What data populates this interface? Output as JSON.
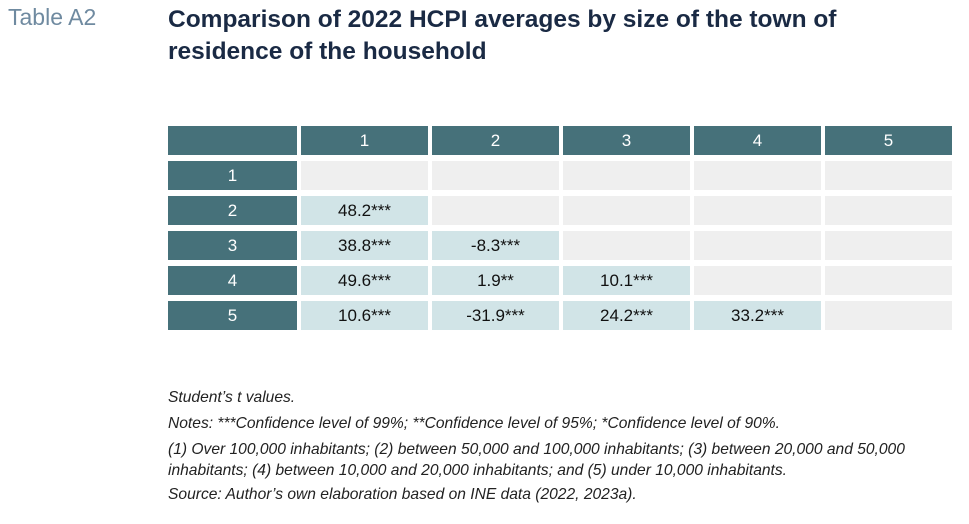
{
  "label": "Table A2",
  "title": "Comparison of 2022 HCPI averages by size of the town of residence of the household",
  "columns": [
    "",
    "1",
    "2",
    "3",
    "4",
    "5"
  ],
  "rows": [
    {
      "label": "1",
      "cells": [
        "",
        "",
        "",
        "",
        ""
      ]
    },
    {
      "label": "2",
      "cells": [
        "48.2***",
        "",
        "",
        "",
        ""
      ]
    },
    {
      "label": "3",
      "cells": [
        "38.8***",
        "-8.3***",
        "",
        "",
        ""
      ]
    },
    {
      "label": "4",
      "cells": [
        "49.6***",
        "1.9**",
        "10.1***",
        "",
        ""
      ]
    },
    {
      "label": "5",
      "cells": [
        "10.6***",
        "-31.9***",
        "24.2***",
        "33.2***",
        ""
      ]
    }
  ],
  "notes": {
    "line1": "Student’s t values.",
    "line2": "Notes: ***Confidence level of 99%; **Confidence level of 95%; *Confidence level of 90%.",
    "line3": "(1) Over 100,000 inhabitants; (2) between 50,000 and 100,000 inhabitants; (3) between 20,000 and 50,000 inhabitants; (4) between 10,000 and 20,000 inhabitants; and (5) under 10,000 inhabitants.",
    "line4": "Source: Author’s own elaboration based on INE data (2022, 2023a)."
  }
}
